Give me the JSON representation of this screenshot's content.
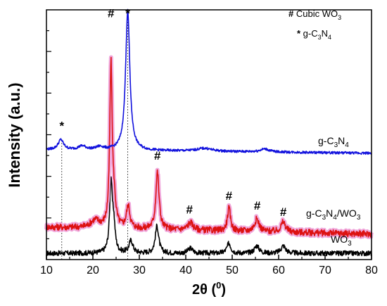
{
  "chart_data": {
    "type": "line",
    "xlabel_main": "2θ (",
    "xlabel_sup": "0",
    "xlabel_end": ")",
    "ylabel": "Intensity (a.u.)",
    "xlim": [
      10,
      80
    ],
    "ylim": [
      0,
      100
    ],
    "x_ticks": [
      "10",
      "20",
      "30",
      "40",
      "50",
      "60",
      "70",
      "80"
    ],
    "y_ticks_shown": false,
    "grid": false,
    "legend": {
      "position": "top-right",
      "items": [
        {
          "symbol": "#",
          "text": "Cubic WO",
          "sub": "3"
        },
        {
          "symbol": "*",
          "text": "g-C",
          "sub": "3",
          "text2": "N",
          "sub2": "4"
        }
      ]
    },
    "series": [
      {
        "name": "WO3",
        "label_parts": [
          {
            "t": "WO"
          },
          {
            "t": "3",
            "sub": true
          }
        ],
        "color": "#000000",
        "baseline": 2.5,
        "noise": 1.0,
        "peaks": [
          [
            23.9,
            28,
            0.35
          ],
          [
            24.5,
            10,
            0.35
          ],
          [
            28.2,
            5,
            0.5
          ],
          [
            33.8,
            11,
            0.45
          ],
          [
            41.0,
            2,
            0.6
          ],
          [
            49.3,
            4,
            0.5
          ],
          [
            55.3,
            3,
            0.6
          ],
          [
            61.0,
            3,
            0.6
          ]
        ]
      },
      {
        "name": "g-C3N4/WO3",
        "label_parts": [
          {
            "t": "g-C"
          },
          {
            "t": "3",
            "sub": true
          },
          {
            "t": "N"
          },
          {
            "t": "4",
            "sub": true
          },
          {
            "t": "/WO"
          },
          {
            "t": "3",
            "sub": true
          }
        ],
        "color": "#dd1111",
        "baseline": 13,
        "noise": 1.3,
        "peaks": [
          [
            20.5,
            3,
            1.2
          ],
          [
            23.9,
            65,
            0.32
          ],
          [
            24.6,
            8,
            0.4
          ],
          [
            27.6,
            9,
            0.45
          ],
          [
            33.9,
            23,
            0.42
          ],
          [
            41.0,
            3,
            0.7
          ],
          [
            49.3,
            9,
            0.4
          ],
          [
            55.3,
            5,
            0.6
          ],
          [
            61.0,
            4,
            0.6
          ]
        ]
      },
      {
        "name": "g-C3N4",
        "label_parts": [
          {
            "t": "g-C"
          },
          {
            "t": "3",
            "sub": true
          },
          {
            "t": "N"
          },
          {
            "t": "4",
            "sub": true
          }
        ],
        "color": "#1111dd",
        "baseline": 44,
        "noise": 0.5,
        "peaks": [
          [
            13.1,
            4,
            0.7
          ],
          [
            17.7,
            1.5,
            1.0
          ],
          [
            21.5,
            1.2,
            1.0
          ],
          [
            27.5,
            56,
            0.55
          ],
          [
            44.0,
            1.2,
            2.0
          ],
          [
            57.0,
            1.2,
            1.2
          ]
        ]
      }
    ],
    "peak_markers": [
      {
        "symbol": "*",
        "x": 13.3,
        "y": 52
      },
      {
        "symbol": "#",
        "x": 23.9,
        "y": 97
      },
      {
        "symbol": "*",
        "x": 27.5,
        "y": 97
      },
      {
        "symbol": "#",
        "x": 33.9,
        "y": 40
      },
      {
        "symbol": "#",
        "x": 40.8,
        "y": 18.5
      },
      {
        "symbol": "#",
        "x": 49.3,
        "y": 24
      },
      {
        "symbol": "#",
        "x": 55.4,
        "y": 20
      },
      {
        "symbol": "#",
        "x": 61.0,
        "y": 17.5
      }
    ],
    "guide_lines": [
      {
        "x": 13.3,
        "y_top": 48
      },
      {
        "x": 27.5,
        "y_top": 100
      }
    ]
  }
}
